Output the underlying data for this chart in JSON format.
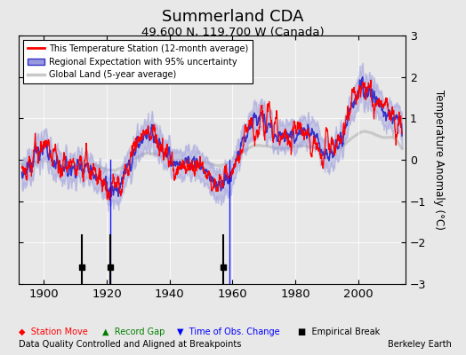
{
  "title": "Summerland CDA",
  "subtitle": "49.600 N, 119.700 W (Canada)",
  "ylabel": "Temperature Anomaly (°C)",
  "xlabel_note": "Data Quality Controlled and Aligned at Breakpoints",
  "credit": "Berkeley Earth",
  "year_start": 1893,
  "year_end": 2013,
  "ylim": [
    -3,
    3
  ],
  "yticks": [
    -3,
    -2,
    -1,
    0,
    1,
    2,
    3
  ],
  "xticks": [
    1900,
    1920,
    1940,
    1960,
    1980,
    2000
  ],
  "bg_color": "#e8e8e8",
  "time_obs_change_years": [
    1921,
    1959
  ],
  "empirical_break_years": [
    1912,
    1921,
    1957
  ]
}
